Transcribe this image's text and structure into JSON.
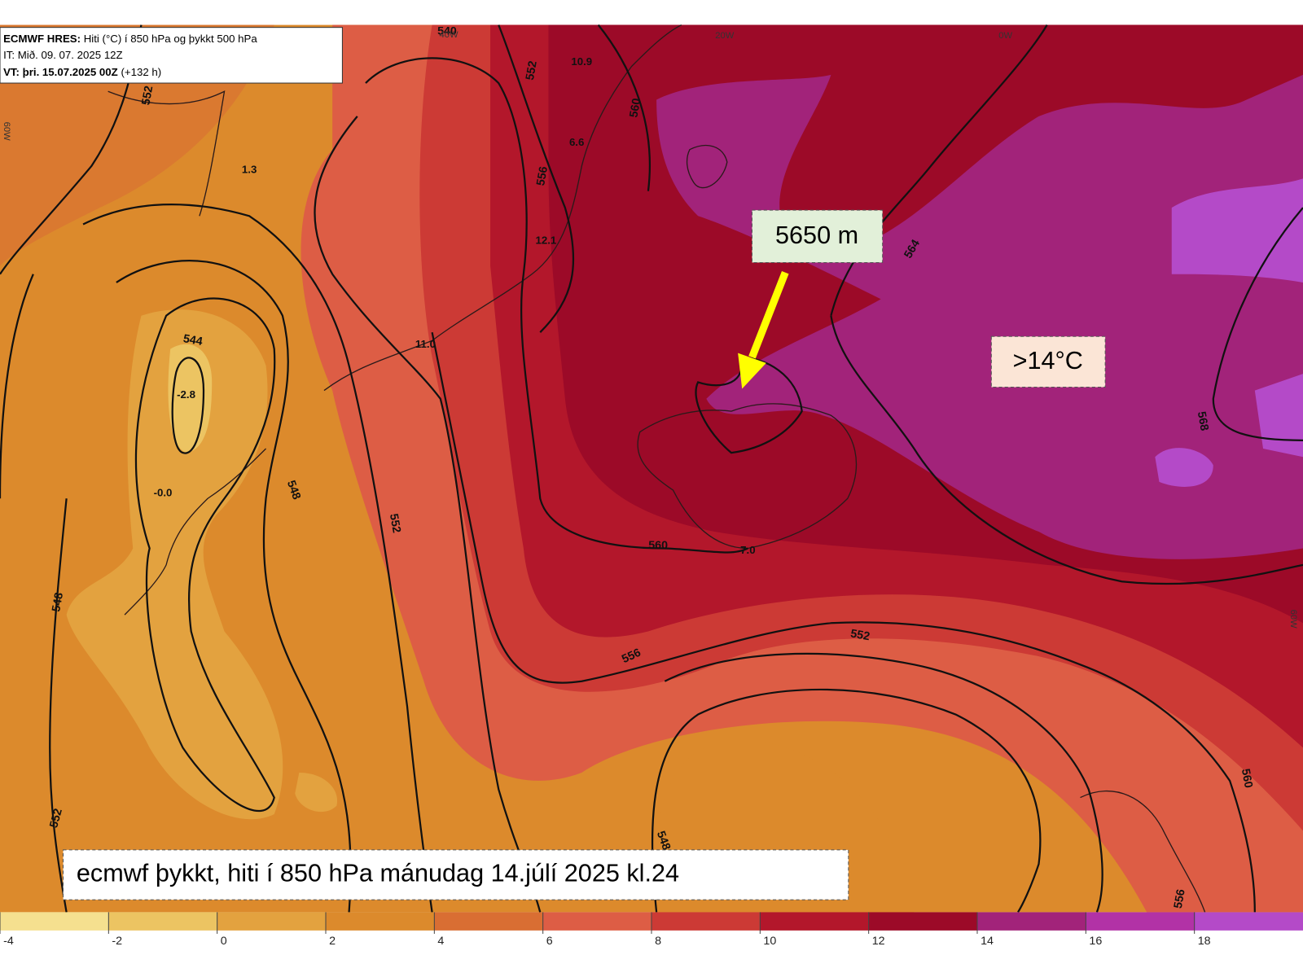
{
  "header": {
    "model": "ECMWF HRES:",
    "title": "Hiti (°C) í 850 hPa og þykkt 500 hPa",
    "init": "IT: Mið. 09. 07. 2025 12Z",
    "valid": "VT: þri. 15.07.2025 00Z",
    "lead": "(+132 h)"
  },
  "annotations": {
    "thickness": "5650 m",
    "temperature": ">14°C",
    "caption": "ecmwf þykkt, hiti í 850 hPa mánudag 14.júlí 2025 kl.24"
  },
  "colorbar": {
    "range": [
      -4,
      20
    ],
    "ticks": [
      -4,
      -2,
      0,
      2,
      4,
      6,
      8,
      10,
      12,
      14,
      16,
      18
    ],
    "colors": [
      "#f5e08f",
      "#ecc462",
      "#e3a23f",
      "#dc8a2c",
      "#d96e33",
      "#dd5d45",
      "#cc3a35",
      "#b3172b",
      "#9c0a28",
      "#a2237a",
      "#b232a6",
      "#b44ac8"
    ]
  },
  "contour_labels": [
    552,
    552,
    560,
    556,
    544,
    548,
    552,
    548,
    560,
    564,
    568,
    556,
    552,
    560,
    552,
    556,
    540,
    548
  ],
  "point_labels": [
    "10.9",
    "6.6",
    "12.1",
    "11.0",
    "-2.8",
    "-0.0",
    "1.3",
    "7.0"
  ],
  "meridian_labels": [
    "40W",
    "20W",
    "0W",
    "60W",
    "60W"
  ]
}
